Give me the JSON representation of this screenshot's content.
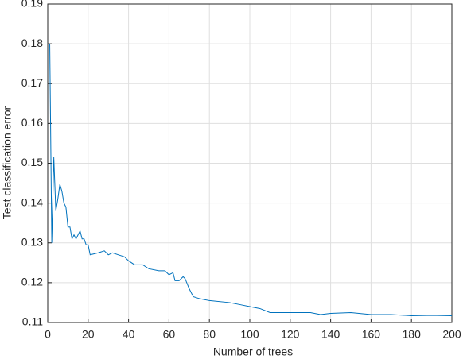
{
  "chart_data": {
    "type": "line",
    "x_label": "Number of trees",
    "y_label": "Test classification error",
    "x": [
      1,
      2,
      3,
      4,
      5,
      6,
      7,
      8,
      9,
      10,
      11,
      12,
      13,
      14,
      15,
      16,
      17,
      18,
      19,
      20,
      21,
      25,
      28,
      30,
      32,
      35,
      38,
      40,
      43,
      47,
      50,
      55,
      58,
      60,
      62,
      63,
      65,
      67,
      68,
      70,
      72,
      75,
      80,
      90,
      95,
      100,
      105,
      110,
      120,
      130,
      135,
      140,
      150,
      160,
      170,
      180,
      190,
      200
    ],
    "series": [
      {
        "color": "#0072bd",
        "values": [
          0.18,
          0.13,
          0.1515,
          0.138,
          0.141,
          0.1447,
          0.143,
          0.14,
          0.139,
          0.134,
          0.134,
          0.131,
          0.132,
          0.131,
          0.132,
          0.133,
          0.131,
          0.131,
          0.1295,
          0.1295,
          0.127,
          0.1275,
          0.128,
          0.127,
          0.1275,
          0.127,
          0.1265,
          0.1255,
          0.1245,
          0.1245,
          0.1235,
          0.123,
          0.123,
          0.122,
          0.1225,
          0.1205,
          0.1205,
          0.1215,
          0.121,
          0.1185,
          0.1165,
          0.116,
          0.1155,
          0.115,
          0.1145,
          0.114,
          0.1135,
          0.1125,
          0.1125,
          0.1125,
          0.112,
          0.1123,
          0.1125,
          0.112,
          0.112,
          0.1117,
          0.1118,
          0.1117
        ]
      }
    ],
    "xlim": [
      0,
      200
    ],
    "xticks": [
      0,
      20,
      40,
      60,
      80,
      100,
      120,
      140,
      160,
      180,
      200
    ],
    "ylim": [
      0.11,
      0.19
    ],
    "yticks": [
      0.11,
      0.12,
      0.13,
      0.14,
      0.15,
      0.16,
      0.17,
      0.18,
      0.19
    ],
    "grid": true
  }
}
